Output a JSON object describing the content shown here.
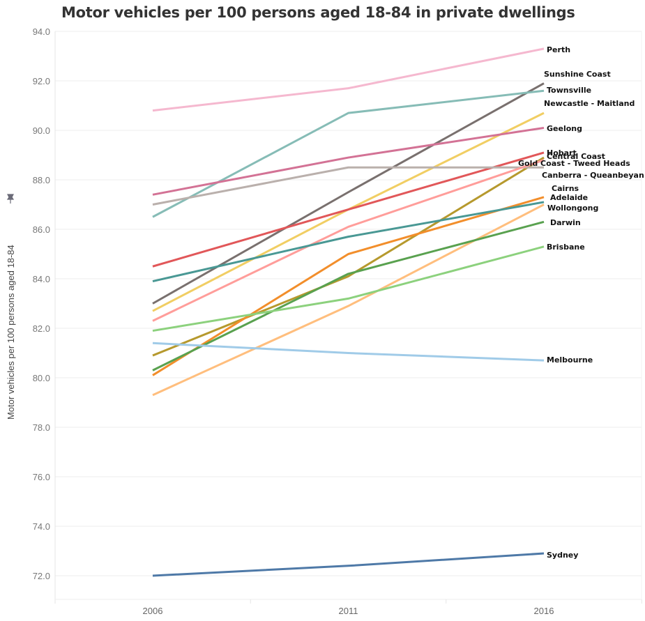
{
  "chart_data": {
    "type": "line",
    "title": "Motor vehicles per 100 persons aged 18-84 in private dwellings",
    "xlabel": "",
    "ylabel": "Motor vehicles per 100 persons aged 18-84",
    "x": [
      2006,
      2011,
      2016
    ],
    "x_tick_labels": [
      "2006",
      "2011",
      "2016"
    ],
    "ylim": [
      71.0,
      94.0
    ],
    "y_ticks": [
      72.0,
      74.0,
      76.0,
      78.0,
      80.0,
      82.0,
      84.0,
      86.0,
      88.0,
      90.0,
      92.0,
      94.0
    ],
    "y_tick_labels": [
      "72.0",
      "74.0",
      "76.0",
      "78.0",
      "80.0",
      "82.0",
      "84.0",
      "86.0",
      "88.0",
      "90.0",
      "92.0",
      "94.0"
    ],
    "grid": true,
    "legend": "labels at line ends (right)",
    "series": [
      {
        "name": "Perth",
        "color": "#f5b8cf",
        "values": [
          90.8,
          91.7,
          93.3
        ]
      },
      {
        "name": "Sunshine Coast",
        "color": "#79706e",
        "values": [
          83.0,
          87.5,
          91.9
        ]
      },
      {
        "name": "Townsville",
        "color": "#86bcb6",
        "values": [
          86.5,
          90.7,
          91.6
        ]
      },
      {
        "name": "Newcastle - Maitland",
        "color": "#f1ce63",
        "values": [
          82.7,
          86.8,
          90.7
        ]
      },
      {
        "name": "Geelong",
        "color": "#d37295",
        "values": [
          87.4,
          88.9,
          90.1
        ]
      },
      {
        "name": "Hobart",
        "color": "#e15759",
        "values": [
          84.5,
          86.8,
          89.1
        ]
      },
      {
        "name": "Central Coast",
        "color": "#b6992d",
        "values": [
          80.9,
          84.1,
          88.9
        ]
      },
      {
        "name": "Gold Coast - Tweed Heads",
        "color": "#bab0ac",
        "values": [
          87.0,
          88.5,
          88.5
        ]
      },
      {
        "name": "Canberra - Queanbeyan",
        "color": "#ff9d9a",
        "values": [
          82.3,
          86.1,
          88.8
        ]
      },
      {
        "name": "Cairns",
        "color": "#f28e2b",
        "values": [
          80.1,
          85.0,
          87.3
        ]
      },
      {
        "name": "Adelaide",
        "color": "#499894",
        "values": [
          83.9,
          85.7,
          87.1
        ]
      },
      {
        "name": "Wollongong",
        "color": "#ffbe7d",
        "values": [
          79.3,
          82.9,
          87.0
        ]
      },
      {
        "name": "Darwin",
        "color": "#59a14f",
        "values": [
          80.3,
          84.2,
          86.3
        ]
      },
      {
        "name": "Brisbane",
        "color": "#8cd17d",
        "values": [
          81.9,
          83.2,
          85.3
        ]
      },
      {
        "name": "Melbourne",
        "color": "#a0cbe8",
        "values": [
          81.4,
          81.0,
          80.7
        ]
      },
      {
        "name": "Sydney",
        "color": "#4e79a7",
        "values": [
          72.0,
          72.4,
          72.9
        ]
      }
    ]
  },
  "chart_ui": {
    "pin_icon": "pin-icon"
  }
}
